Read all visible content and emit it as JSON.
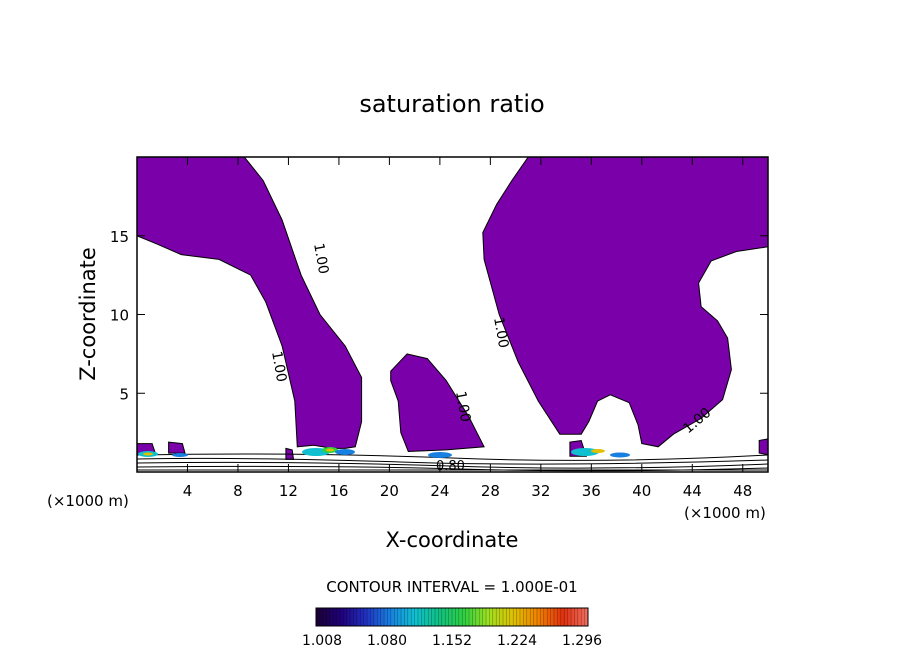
{
  "chart_data": {
    "type": "heatmap",
    "title": "saturation ratio",
    "xlabel": "X-coordinate",
    "ylabel": "Z-coordinate",
    "x_units": "(×1000 m)",
    "xlim": [
      0,
      50
    ],
    "ylim": [
      0,
      20
    ],
    "x_ticks": [
      "4",
      "8",
      "12",
      "16",
      "20",
      "24",
      "28",
      "32",
      "36",
      "40",
      "44",
      "48"
    ],
    "y_ticks": [
      "5",
      "10",
      "15"
    ],
    "fill_color": "#7a00aa",
    "contour_labels": [
      "1.00",
      "1.00",
      "1.00",
      "1.00",
      "1.00",
      "0.80"
    ],
    "contour_interval_text": "CONTOUR INTERVAL = 1.000E-01",
    "colorbar": {
      "labels": [
        "1.008",
        "1.080",
        "1.152",
        "1.224",
        "1.296"
      ],
      "colors": [
        "#1a0033",
        "#20007a",
        "#2030c0",
        "#1880e0",
        "#10c0d0",
        "#10c080",
        "#30d040",
        "#a0e020",
        "#e0c000",
        "#f08000",
        "#e03010",
        "#f07060"
      ]
    }
  }
}
